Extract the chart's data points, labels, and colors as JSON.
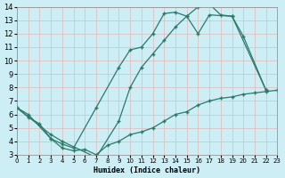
{
  "xlabel": "Humidex (Indice chaleur)",
  "bg_color": "#cdeef5",
  "grid_color": "#e8c8c8",
  "line_color": "#2a7a6a",
  "xlim": [
    0,
    23
  ],
  "ylim": [
    3,
    14
  ],
  "xticks": [
    0,
    1,
    2,
    3,
    4,
    5,
    6,
    7,
    8,
    9,
    10,
    11,
    12,
    13,
    14,
    15,
    16,
    17,
    18,
    19,
    20,
    21,
    22,
    23
  ],
  "yticks": [
    3,
    4,
    5,
    6,
    7,
    8,
    9,
    10,
    11,
    12,
    13,
    14
  ],
  "line1_x": [
    0,
    1,
    3,
    4,
    5,
    7,
    9,
    10,
    11,
    12,
    13,
    14,
    15,
    16,
    17,
    18,
    19,
    20,
    22
  ],
  "line1_y": [
    6.5,
    6.0,
    4.2,
    3.8,
    3.5,
    6.5,
    9.5,
    10.8,
    11.0,
    12.0,
    13.5,
    13.6,
    13.3,
    14.0,
    14.2,
    13.4,
    13.3,
    11.8,
    7.8
  ],
  "line2_x": [
    0,
    3,
    4,
    7,
    9,
    10,
    11,
    12,
    13,
    14,
    15,
    16,
    17,
    19,
    22
  ],
  "line2_y": [
    6.5,
    4.5,
    4.0,
    2.8,
    5.5,
    8.0,
    9.5,
    10.5,
    11.5,
    12.5,
    13.3,
    12.0,
    13.4,
    13.3,
    7.8
  ],
  "line3_x": [
    0,
    1,
    2,
    3,
    4,
    5,
    6,
    7,
    8,
    9,
    10,
    11,
    12,
    13,
    14,
    15,
    16,
    17,
    18,
    19,
    20,
    21,
    22,
    23
  ],
  "line3_y": [
    6.5,
    5.8,
    5.3,
    4.2,
    3.5,
    3.3,
    3.4,
    3.0,
    3.7,
    4.0,
    4.5,
    4.7,
    5.0,
    5.5,
    6.0,
    6.2,
    6.7,
    7.0,
    7.2,
    7.3,
    7.5,
    7.6,
    7.7,
    7.8
  ]
}
